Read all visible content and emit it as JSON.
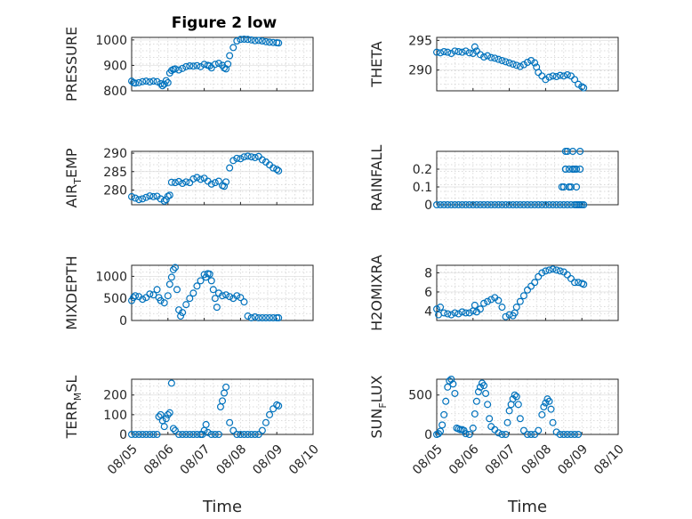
{
  "figure": {
    "title": "Figure 2 low",
    "marker_color": "#0072BD"
  },
  "chart_data": [
    {
      "type": "scatter",
      "ylabel": "PRESSURE",
      "title": "Figure 2 low",
      "yticks": [
        "800",
        "900",
        "1000"
      ],
      "ylim": [
        800,
        1010
      ],
      "x": [
        5.0,
        5.05,
        5.1,
        5.2,
        5.3,
        5.4,
        5.5,
        5.6,
        5.7,
        5.8,
        5.85,
        5.9,
        5.95,
        6.0,
        6.05,
        6.1,
        6.15,
        6.2,
        6.3,
        6.4,
        6.5,
        6.6,
        6.7,
        6.8,
        6.9,
        7.0,
        7.1,
        7.15,
        7.2,
        7.3,
        7.4,
        7.5,
        7.55,
        7.6,
        7.65,
        7.7,
        7.8,
        7.9,
        8.0,
        8.1,
        8.2,
        8.3,
        8.4,
        8.5,
        8.6,
        8.7,
        8.8,
        8.9,
        9.0,
        9.05
      ],
      "y": [
        838,
        832,
        830,
        832,
        836,
        838,
        835,
        838,
        836,
        828,
        820,
        826,
        840,
        832,
        870,
        880,
        884,
        886,
        882,
        888,
        895,
        898,
        897,
        899,
        895,
        904,
        900,
        898,
        890,
        904,
        908,
        900,
        890,
        886,
        905,
        938,
        970,
        996,
        1002,
        1003,
        1002,
        1000,
        997,
        998,
        996,
        993,
        991,
        990,
        989,
        988
      ]
    },
    {
      "type": "scatter",
      "ylabel": "THETA",
      "yticks": [
        "290",
        "295"
      ],
      "ylim": [
        286.5,
        295.5
      ],
      "x": [
        5.0,
        5.1,
        5.2,
        5.3,
        5.4,
        5.5,
        5.6,
        5.7,
        5.8,
        5.9,
        6.0,
        6.05,
        6.1,
        6.2,
        6.3,
        6.4,
        6.5,
        6.6,
        6.7,
        6.8,
        6.9,
        7.0,
        7.1,
        7.2,
        7.3,
        7.4,
        7.5,
        7.6,
        7.7,
        7.75,
        7.8,
        7.9,
        8.0,
        8.1,
        8.2,
        8.3,
        8.4,
        8.5,
        8.6,
        8.7,
        8.8,
        8.9,
        9.0,
        9.05
      ],
      "y": [
        293.0,
        292.9,
        293.1,
        293.0,
        292.8,
        293.2,
        293.1,
        293.0,
        293.2,
        292.9,
        292.8,
        293.9,
        293.2,
        292.6,
        292.2,
        292.4,
        292.1,
        292.0,
        291.8,
        291.6,
        291.4,
        291.2,
        291.0,
        290.8,
        290.6,
        290.9,
        291.3,
        291.6,
        291.2,
        290.5,
        289.6,
        289.0,
        288.4,
        288.8,
        289.0,
        288.9,
        289.1,
        289.0,
        289.2,
        289.0,
        288.4,
        287.6,
        287.2,
        287.0
      ]
    },
    {
      "type": "scatter",
      "ylabel": "AIR_TEMP",
      "ylabel_main": "AIR",
      "ylabel_sub": "T",
      "ylabel_rest": "EMP",
      "yticks": [
        "280",
        "285",
        "290"
      ],
      "ylim": [
        276,
        290.5
      ],
      "x": [
        5.0,
        5.1,
        5.2,
        5.3,
        5.4,
        5.5,
        5.6,
        5.7,
        5.8,
        5.9,
        5.95,
        6.0,
        6.05,
        6.1,
        6.2,
        6.3,
        6.4,
        6.5,
        6.6,
        6.7,
        6.8,
        6.9,
        7.0,
        7.1,
        7.2,
        7.3,
        7.4,
        7.5,
        7.55,
        7.6,
        7.7,
        7.8,
        7.9,
        8.0,
        8.1,
        8.2,
        8.3,
        8.4,
        8.5,
        8.6,
        8.7,
        8.8,
        8.9,
        9.0,
        9.05
      ],
      "y": [
        278.2,
        277.8,
        277.4,
        277.6,
        278.0,
        278.4,
        278.2,
        278.3,
        277.6,
        277.0,
        277.4,
        278.3,
        278.6,
        282.1,
        282.0,
        282.3,
        281.8,
        282.2,
        282.0,
        283.0,
        283.4,
        282.9,
        283.2,
        282.4,
        281.6,
        282.0,
        282.4,
        281.2,
        281.0,
        282.2,
        286.0,
        288.0,
        288.6,
        288.5,
        289.0,
        289.2,
        289.0,
        288.8,
        289.1,
        288.2,
        287.6,
        286.8,
        286.0,
        285.6,
        285.2
      ]
    },
    {
      "type": "scatter",
      "ylabel": "RAINFALL",
      "yticks": [
        "0",
        "0.1",
        "0.2"
      ],
      "ylim": [
        0,
        0.3
      ],
      "x": [
        5.0,
        5.1,
        5.2,
        5.3,
        5.4,
        5.5,
        5.6,
        5.7,
        5.8,
        5.9,
        6.0,
        6.1,
        6.2,
        6.3,
        6.4,
        6.5,
        6.6,
        6.7,
        6.8,
        6.9,
        7.0,
        7.1,
        7.2,
        7.3,
        7.4,
        7.5,
        7.6,
        7.7,
        7.8,
        7.9,
        8.0,
        8.1,
        8.2,
        8.3,
        8.4,
        8.45,
        8.5,
        8.55,
        8.6,
        8.65,
        8.7,
        8.75,
        8.8,
        8.85,
        8.9,
        8.95,
        9.0,
        9.05,
        8.5,
        8.55,
        8.6,
        8.65,
        8.7,
        8.75,
        8.8,
        8.85,
        8.55,
        8.65,
        8.75,
        8.85,
        8.95,
        8.95
      ],
      "y": [
        0,
        0,
        0,
        0,
        0,
        0,
        0,
        0,
        0,
        0,
        0,
        0,
        0,
        0,
        0,
        0,
        0,
        0,
        0,
        0,
        0,
        0,
        0,
        0,
        0,
        0,
        0,
        0,
        0,
        0,
        0,
        0,
        0,
        0,
        0,
        0.1,
        0,
        0.2,
        0,
        0.1,
        0,
        0.2,
        0,
        0.1,
        0,
        0,
        0,
        0,
        0.1,
        0.2,
        0.3,
        0.2,
        0.1,
        0.2,
        0.2,
        0.2,
        0.3,
        0.1,
        0.3,
        0,
        0.2,
        0.3
      ]
    },
    {
      "type": "scatter",
      "ylabel": "MIXDEPTH",
      "yticks": [
        "0",
        "500",
        "1000"
      ],
      "ylim": [
        0,
        1250
      ],
      "x": [
        5.0,
        5.05,
        5.1,
        5.2,
        5.3,
        5.4,
        5.5,
        5.6,
        5.7,
        5.75,
        5.8,
        5.9,
        6.0,
        6.05,
        6.1,
        6.15,
        6.2,
        6.25,
        6.3,
        6.35,
        6.4,
        6.5,
        6.6,
        6.7,
        6.8,
        6.9,
        7.0,
        7.05,
        7.1,
        7.15,
        7.2,
        7.25,
        7.3,
        7.35,
        7.4,
        7.5,
        7.6,
        7.7,
        7.8,
        7.9,
        8.0,
        8.1,
        8.2,
        8.3,
        8.4,
        8.5,
        8.6,
        8.7,
        8.8,
        8.9,
        9.0,
        9.05
      ],
      "y": [
        450,
        520,
        560,
        540,
        480,
        520,
        600,
        580,
        700,
        520,
        450,
        400,
        560,
        820,
        980,
        1150,
        1200,
        700,
        240,
        100,
        180,
        360,
        500,
        620,
        780,
        900,
        1040,
        980,
        1060,
        1050,
        900,
        700,
        500,
        300,
        620,
        560,
        580,
        540,
        500,
        560,
        520,
        420,
        100,
        60,
        80,
        60,
        60,
        60,
        60,
        60,
        60,
        60
      ]
    },
    {
      "type": "scatter",
      "ylabel": "H2OMIXRA",
      "yticks": [
        "4",
        "6",
        "8"
      ],
      "ylim": [
        3,
        8.8
      ],
      "x": [
        5.0,
        5.05,
        5.1,
        5.2,
        5.3,
        5.4,
        5.5,
        5.6,
        5.7,
        5.8,
        5.9,
        6.0,
        6.05,
        6.1,
        6.2,
        6.3,
        6.4,
        6.5,
        6.6,
        6.7,
        6.8,
        6.9,
        7.0,
        7.1,
        7.15,
        7.2,
        7.3,
        7.4,
        7.5,
        7.6,
        7.7,
        7.8,
        7.9,
        8.0,
        8.1,
        8.2,
        8.3,
        8.4,
        8.5,
        8.6,
        8.7,
        8.8,
        8.9,
        9.0,
        9.05
      ],
      "y": [
        4.2,
        3.6,
        4.4,
        3.8,
        3.7,
        3.6,
        3.8,
        3.7,
        3.9,
        3.8,
        3.8,
        4.0,
        4.6,
        3.9,
        4.2,
        4.8,
        5.0,
        5.2,
        5.4,
        5.1,
        4.4,
        3.4,
        3.6,
        3.5,
        3.8,
        4.4,
        5.0,
        5.6,
        6.2,
        6.6,
        7.0,
        7.6,
        8.0,
        8.2,
        8.3,
        8.4,
        8.3,
        8.2,
        8.1,
        7.8,
        7.4,
        7.0,
        7.0,
        6.9,
        6.8
      ]
    },
    {
      "type": "scatter",
      "ylabel": "TERR_MSL",
      "ylabel_main": "TERR",
      "ylabel_sub": "M",
      "ylabel_rest": "SL",
      "xticks": [
        "08/05",
        "08/06",
        "08/07",
        "08/08",
        "08/09",
        "08/10"
      ],
      "xlabel": "Time",
      "yticks": [
        "0",
        "100",
        "200"
      ],
      "ylim": [
        0,
        280
      ],
      "x": [
        5.0,
        5.1,
        5.2,
        5.3,
        5.4,
        5.5,
        5.6,
        5.7,
        5.75,
        5.8,
        5.85,
        5.9,
        5.95,
        6.0,
        6.05,
        6.1,
        6.15,
        6.2,
        6.3,
        6.4,
        6.5,
        6.6,
        6.7,
        6.8,
        6.9,
        6.95,
        7.0,
        7.05,
        7.1,
        7.2,
        7.3,
        7.4,
        7.45,
        7.5,
        7.55,
        7.6,
        7.7,
        7.8,
        7.9,
        8.0,
        8.1,
        8.2,
        8.3,
        8.4,
        8.5,
        8.6,
        8.7,
        8.8,
        8.9,
        9.0,
        9.05
      ],
      "y": [
        0,
        0,
        0,
        0,
        0,
        0,
        0,
        0,
        90,
        100,
        70,
        40,
        80,
        100,
        110,
        260,
        30,
        20,
        0,
        0,
        0,
        0,
        0,
        0,
        0,
        0,
        20,
        50,
        10,
        0,
        0,
        0,
        140,
        170,
        210,
        240,
        60,
        20,
        0,
        0,
        0,
        0,
        0,
        0,
        0,
        20,
        60,
        100,
        130,
        150,
        145
      ]
    },
    {
      "type": "scatter",
      "ylabel": "SUN_FLUX",
      "ylabel_main": "SUN",
      "ylabel_sub": "F",
      "ylabel_rest": "LUX",
      "xticks": [
        "08/05",
        "08/06",
        "08/07",
        "08/08",
        "08/09",
        "08/10"
      ],
      "xlabel": "Time",
      "yticks": [
        "0",
        "500"
      ],
      "ylim": [
        0,
        700
      ],
      "x": [
        5.0,
        5.05,
        5.1,
        5.15,
        5.2,
        5.25,
        5.3,
        5.35,
        5.4,
        5.45,
        5.5,
        5.55,
        5.6,
        5.65,
        5.7,
        5.75,
        5.8,
        5.9,
        6.0,
        6.05,
        6.1,
        6.15,
        6.2,
        6.25,
        6.3,
        6.35,
        6.4,
        6.45,
        6.5,
        6.6,
        6.7,
        6.8,
        6.9,
        6.95,
        7.0,
        7.05,
        7.1,
        7.15,
        7.2,
        7.25,
        7.3,
        7.4,
        7.5,
        7.6,
        7.7,
        7.8,
        7.9,
        7.95,
        8.0,
        8.05,
        8.1,
        8.15,
        8.2,
        8.3,
        8.4,
        8.5,
        8.6,
        8.7,
        8.8,
        8.9
      ],
      "y": [
        0,
        10,
        40,
        120,
        250,
        420,
        600,
        680,
        700,
        640,
        520,
        80,
        70,
        60,
        60,
        50,
        10,
        0,
        80,
        260,
        420,
        540,
        600,
        650,
        620,
        520,
        380,
        200,
        100,
        60,
        20,
        0,
        0,
        150,
        300,
        380,
        450,
        500,
        480,
        380,
        200,
        50,
        0,
        0,
        0,
        50,
        250,
        350,
        400,
        450,
        420,
        320,
        150,
        30,
        0,
        0,
        0,
        0,
        0,
        0
      ]
    }
  ]
}
